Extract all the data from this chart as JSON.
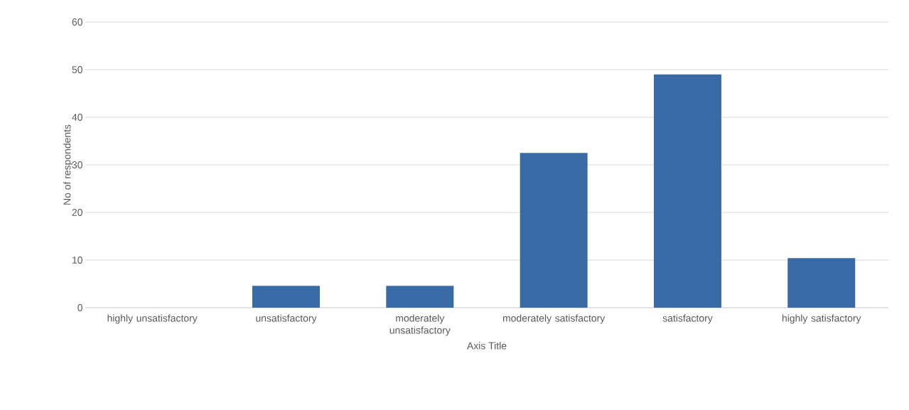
{
  "chart_data": {
    "type": "bar",
    "xlabel": "Axis Title",
    "ylabel": "No of respondents",
    "categories": [
      "highly unsatisfactory",
      "unsatisfactory",
      "moderately unsatisfactory",
      "moderately satisfactory",
      "satisfactory",
      "highly satisfactory"
    ],
    "values": [
      0,
      4.6,
      4.6,
      32.5,
      49,
      10.4
    ],
    "color": "#3a6aa6",
    "ylim": [
      0,
      60
    ],
    "yticks": [
      0,
      10,
      20,
      30,
      40,
      50,
      60
    ],
    "grid": "y"
  }
}
